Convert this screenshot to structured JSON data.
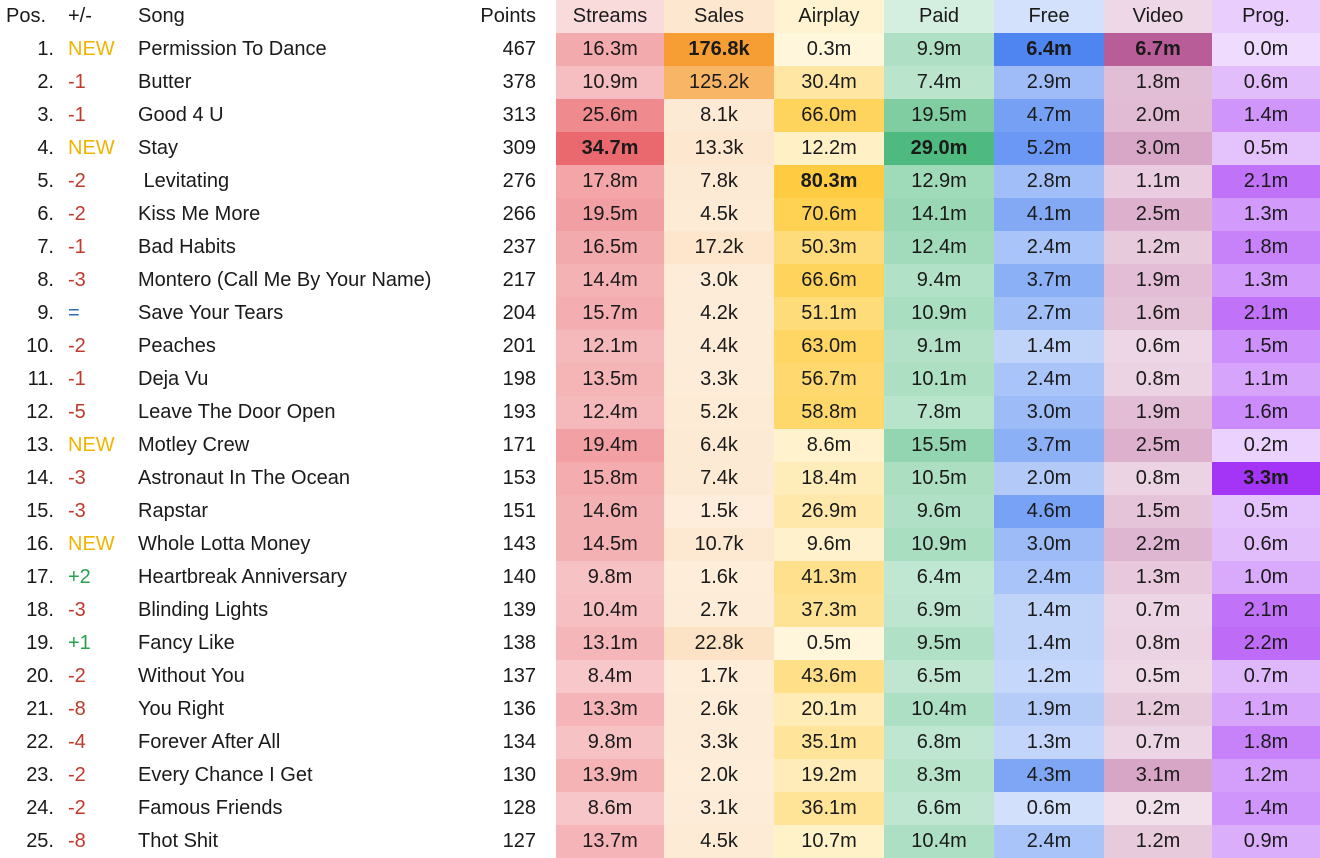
{
  "chart_data": {
    "type": "table",
    "columns": [
      "Pos.",
      "+/-",
      "Song",
      "Points",
      "Streams",
      "Sales",
      "Airplay",
      "Paid",
      "Free",
      "Video",
      "Prog."
    ],
    "rows": [
      [
        "1.",
        "NEW",
        "Permission To Dance",
        "467",
        "16.3m",
        "176.8k",
        "0.3m",
        "9.9m",
        "6.4m",
        "6.7m",
        "0.0m"
      ],
      [
        "2.",
        "-1",
        "Butter",
        "378",
        "10.9m",
        "125.2k",
        "30.4m",
        "7.4m",
        "2.9m",
        "1.8m",
        "0.6m"
      ],
      [
        "3.",
        "-1",
        "Good 4 U",
        "313",
        "25.6m",
        "8.1k",
        "66.0m",
        "19.5m",
        "4.7m",
        "2.0m",
        "1.4m"
      ],
      [
        "4.",
        "NEW",
        "Stay",
        "309",
        "34.7m",
        "13.3k",
        "12.2m",
        "29.0m",
        "5.2m",
        "3.0m",
        "0.5m"
      ],
      [
        "5.",
        "-2",
        " Levitating",
        "276",
        "17.8m",
        "7.8k",
        "80.3m",
        "12.9m",
        "2.8m",
        "1.1m",
        "2.1m"
      ],
      [
        "6.",
        "-2",
        "Kiss Me More",
        "266",
        "19.5m",
        "4.5k",
        "70.6m",
        "14.1m",
        "4.1m",
        "2.5m",
        "1.3m"
      ],
      [
        "7.",
        "-1",
        "Bad Habits",
        "237",
        "16.5m",
        "17.2k",
        "50.3m",
        "12.4m",
        "2.4m",
        "1.2m",
        "1.8m"
      ],
      [
        "8.",
        "-3",
        "Montero (Call Me By Your Name)",
        "217",
        "14.4m",
        "3.0k",
        "66.6m",
        "9.4m",
        "3.7m",
        "1.9m",
        "1.3m"
      ],
      [
        "9.",
        "=",
        "Save Your Tears",
        "204",
        "15.7m",
        "4.2k",
        "51.1m",
        "10.9m",
        "2.7m",
        "1.6m",
        "2.1m"
      ],
      [
        "10.",
        "-2",
        "Peaches",
        "201",
        "12.1m",
        "4.4k",
        "63.0m",
        "9.1m",
        "1.4m",
        "0.6m",
        "1.5m"
      ],
      [
        "11.",
        "-1",
        "Deja Vu",
        "198",
        "13.5m",
        "3.3k",
        "56.7m",
        "10.1m",
        "2.4m",
        "0.8m",
        "1.1m"
      ],
      [
        "12.",
        "-5",
        "Leave The Door Open",
        "193",
        "12.4m",
        "5.2k",
        "58.8m",
        "7.8m",
        "3.0m",
        "1.9m",
        "1.6m"
      ],
      [
        "13.",
        "NEW",
        "Motley Crew",
        "171",
        "19.4m",
        "6.4k",
        "8.6m",
        "15.5m",
        "3.7m",
        "2.5m",
        "0.2m"
      ],
      [
        "14.",
        "-3",
        "Astronaut In The Ocean",
        "153",
        "15.8m",
        "7.4k",
        "18.4m",
        "10.5m",
        "2.0m",
        "0.8m",
        "3.3m"
      ],
      [
        "15.",
        "-3",
        "Rapstar",
        "151",
        "14.6m",
        "1.5k",
        "26.9m",
        "9.6m",
        "4.6m",
        "1.5m",
        "0.5m"
      ],
      [
        "16.",
        "NEW",
        "Whole Lotta Money",
        "143",
        "14.5m",
        "10.7k",
        "9.6m",
        "10.9m",
        "3.0m",
        "2.2m",
        "0.6m"
      ],
      [
        "17.",
        "+2",
        "Heartbreak Anniversary",
        "140",
        "9.8m",
        "1.6k",
        "41.3m",
        "6.4m",
        "2.4m",
        "1.3m",
        "1.0m"
      ],
      [
        "18.",
        "-3",
        "Blinding Lights",
        "139",
        "10.4m",
        "2.7k",
        "37.3m",
        "6.9m",
        "1.4m",
        "0.7m",
        "2.1m"
      ],
      [
        "19.",
        "+1",
        "Fancy Like",
        "138",
        "13.1m",
        "22.8k",
        "0.5m",
        "9.5m",
        "1.4m",
        "0.8m",
        "2.2m"
      ],
      [
        "20.",
        "-2",
        "Without You",
        "137",
        "8.4m",
        "1.7k",
        "43.6m",
        "6.5m",
        "1.2m",
        "0.5m",
        "0.7m"
      ],
      [
        "21.",
        "-8",
        "You Right",
        "136",
        "13.3m",
        "2.6k",
        "20.1m",
        "10.4m",
        "1.9m",
        "1.2m",
        "1.1m"
      ],
      [
        "22.",
        "-4",
        "Forever After All",
        "134",
        "9.8m",
        "3.3k",
        "35.1m",
        "6.8m",
        "1.3m",
        "0.7m",
        "1.8m"
      ],
      [
        "23.",
        "-2",
        "Every Chance I Get",
        "130",
        "13.9m",
        "2.0k",
        "19.2m",
        "8.3m",
        "4.3m",
        "3.1m",
        "1.2m"
      ],
      [
        "24.",
        "-2",
        "Famous Friends",
        "128",
        "8.6m",
        "3.1k",
        "36.1m",
        "6.6m",
        "0.6m",
        "0.2m",
        "1.4m"
      ],
      [
        "25.",
        "-8",
        "Thot Shit",
        "127",
        "13.7m",
        "4.5k",
        "10.7m",
        "10.4m",
        "2.4m",
        "1.2m",
        "0.9m"
      ]
    ],
    "bold_cells": [
      [
        0,
        5
      ],
      [
        0,
        8
      ],
      [
        0,
        9
      ],
      [
        3,
        4
      ],
      [
        3,
        7
      ],
      [
        4,
        6
      ],
      [
        13,
        10
      ]
    ],
    "change_colors": {
      "new": "#f0b400",
      "down": "#c0392b",
      "up": "#27a050",
      "same": "#2e6fb0"
    },
    "column_colors": {
      "Streams": "#e8595f",
      "Sales": "#f5921e",
      "Airplay": "#ffc72c",
      "Paid": "#3cb371",
      "Free": "#3c78f0",
      "Video": "#b04b8c",
      "Prog.": "#9b1ff5"
    }
  }
}
